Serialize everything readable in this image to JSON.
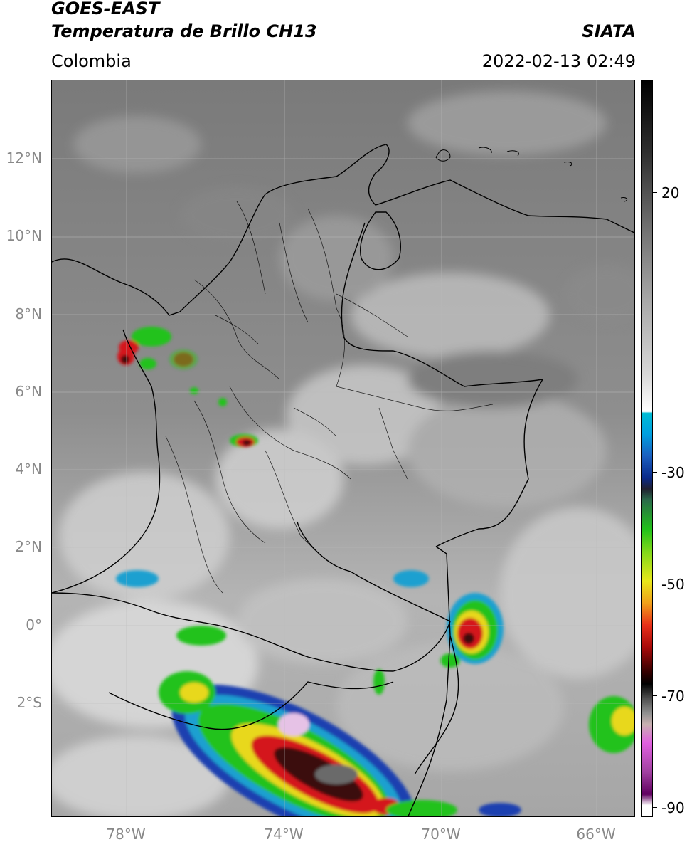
{
  "header": {
    "satellite": "GOES-EAST",
    "product": "Temperatura de Brillo CH13",
    "agency": "SIATA",
    "region": "Colombia",
    "datetime": "2022-02-13 02:49"
  },
  "map": {
    "lat_labels": [
      "12°N",
      "10°N",
      "8°N",
      "6°N",
      "4°N",
      "2°N",
      "0°",
      "2°S"
    ],
    "lon_labels": [
      "78°W",
      "74°W",
      "70°W",
      "66°W"
    ],
    "colorbar_labels": [
      "20",
      "-30",
      "-50",
      "-70",
      "-90"
    ],
    "colors": {
      "ocean_gray": "#6e6e6e",
      "land_gray": "#9a9a9a",
      "cloud_light": "#e6e6e6",
      "convective_red": "#d4141b",
      "convective_green": "#21c21a",
      "convective_blue": "#1a3fb0",
      "cold_top": "#e6c2e6"
    }
  }
}
